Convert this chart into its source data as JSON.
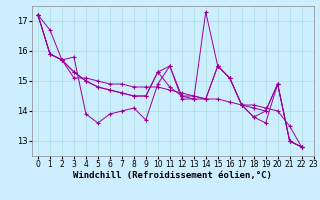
{
  "xlabel": "Windchill (Refroidissement éolien,°C)",
  "background_color": "#cceeff",
  "line_color": "#990099",
  "xlim": [
    -0.5,
    23
  ],
  "ylim": [
    12.5,
    17.5
  ],
  "yticks": [
    13,
    14,
    15,
    16,
    17
  ],
  "xticks": [
    0,
    1,
    2,
    3,
    4,
    5,
    6,
    7,
    8,
    9,
    10,
    11,
    12,
    13,
    14,
    15,
    16,
    17,
    18,
    19,
    20,
    21,
    22,
    23
  ],
  "series": [
    [
      17.2,
      16.7,
      15.7,
      15.8,
      13.9,
      13.6,
      13.9,
      14.0,
      14.1,
      13.7,
      14.9,
      15.5,
      14.4,
      14.4,
      14.4,
      15.5,
      15.1,
      14.2,
      13.8,
      14.0,
      14.9,
      13.0,
      12.8
    ],
    [
      17.2,
      15.9,
      15.7,
      15.1,
      15.1,
      15.0,
      14.9,
      14.9,
      14.8,
      14.8,
      14.8,
      14.7,
      14.6,
      14.5,
      14.4,
      14.4,
      14.3,
      14.2,
      14.2,
      14.1,
      14.0,
      13.5,
      12.8
    ],
    [
      17.2,
      15.9,
      15.7,
      15.3,
      15.0,
      14.8,
      14.7,
      14.6,
      14.5,
      14.5,
      15.3,
      15.5,
      14.5,
      14.4,
      17.3,
      15.5,
      15.1,
      14.2,
      13.8,
      13.6,
      14.9,
      13.0,
      12.8
    ],
    [
      17.2,
      15.9,
      15.7,
      15.3,
      15.0,
      14.8,
      14.7,
      14.6,
      14.5,
      14.5,
      15.3,
      14.8,
      14.5,
      14.5,
      14.4,
      15.5,
      15.1,
      14.2,
      14.1,
      14.0,
      14.9,
      13.0,
      12.8
    ]
  ],
  "grid_color": "#aadddd",
  "tick_fontsize": 5.5,
  "xlabel_fontsize": 6.5
}
